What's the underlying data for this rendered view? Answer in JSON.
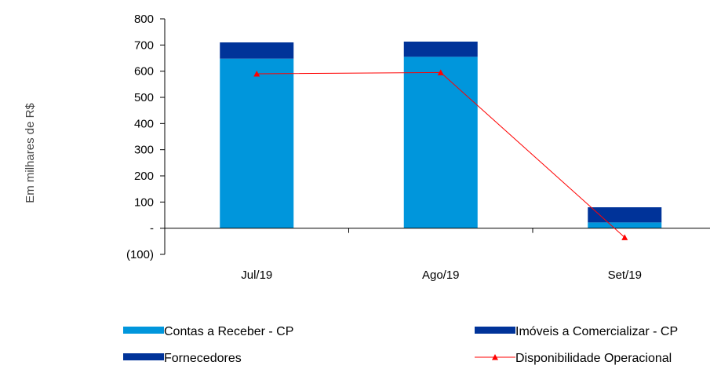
{
  "chart_data": {
    "type": "bar",
    "stacked": true,
    "categories": [
      "Jul/19",
      "Ago/19",
      "Set/19"
    ],
    "ylabel": "Em milhares de R$",
    "ylim": [
      -100,
      800
    ],
    "yticks": [
      {
        "value": 800,
        "label": "800"
      },
      {
        "value": 700,
        "label": "700"
      },
      {
        "value": 600,
        "label": "600"
      },
      {
        "value": 500,
        "label": "500"
      },
      {
        "value": 400,
        "label": "400"
      },
      {
        "value": 300,
        "label": "300"
      },
      {
        "value": 200,
        "label": "200"
      },
      {
        "value": 100,
        "label": "100"
      },
      {
        "value": 0,
        "label": "-"
      },
      {
        "value": -100,
        "label": "(100)"
      }
    ],
    "grid": false,
    "legend_position": "bottom",
    "series": [
      {
        "name": "Contas a Receber  - CP",
        "kind": "bar",
        "color": "#0096DC",
        "values": [
          648,
          655,
          22
        ]
      },
      {
        "name": "Imóveis a Comercializar - CP",
        "kind": "bar",
        "color": "#003399",
        "values": [
          62,
          58,
          58
        ]
      },
      {
        "name": "Fornecedores",
        "kind": "bar",
        "color": "#003399",
        "values": [
          0,
          0,
          0
        ]
      },
      {
        "name": "Disponibilidade Operacional",
        "kind": "line",
        "color": "#FF0000",
        "values": [
          590,
          595,
          -35
        ]
      }
    ]
  }
}
